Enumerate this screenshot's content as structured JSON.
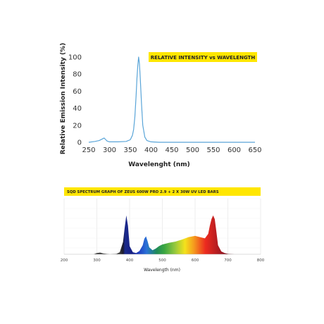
{
  "chart_data": [
    {
      "type": "line",
      "title": "RELATIVE INTENSITY vs WAVELENGTH",
      "xlabel": "Wavelenght (nm)",
      "ylabel": "Relative Emission Intensity (%)",
      "xlim": [
        250,
        650
      ],
      "ylim": [
        0,
        100
      ],
      "xticks": [
        250,
        300,
        350,
        400,
        450,
        500,
        550,
        600,
        650
      ],
      "yticks": [
        0,
        20,
        40,
        60,
        80,
        100
      ],
      "grid": false,
      "colors": {
        "line": "#5aa5d8",
        "title_bg": "#ffe600"
      },
      "series": [
        {
          "x": [
            250,
            265,
            275,
            283,
            287,
            290,
            294,
            300,
            320,
            340,
            350,
            355,
            358,
            361,
            364,
            366,
            368,
            370,
            372,
            374,
            377,
            380,
            385,
            390,
            400,
            420,
            450,
            500,
            550,
            600,
            650
          ],
          "values": [
            0,
            1,
            2,
            4,
            5,
            3.5,
            1.5,
            0.5,
            0.5,
            1,
            3,
            8,
            15,
            30,
            55,
            75,
            90,
            100,
            92,
            75,
            45,
            20,
            6,
            2,
            0.5,
            0,
            0,
            0,
            0,
            0,
            0
          ]
        }
      ]
    },
    {
      "type": "area",
      "title": "SQD SPECTRUM GRAPH OF ZEUS 600W PRO 2.9 + 2 X 30W UV LED BARS",
      "xlabel": "Wavelength (nm)",
      "ylabel": "",
      "xlim": [
        200,
        800
      ],
      "ylim": [
        0,
        100
      ],
      "xticks": [
        200,
        300,
        400,
        500,
        600,
        700,
        800
      ],
      "grid": true,
      "colors": {
        "title_bg": "#ffe600",
        "grid": "#dddddd"
      },
      "series": [
        {
          "x": [
            200,
            290,
            300,
            310,
            320,
            340,
            360,
            370,
            380,
            385,
            390,
            395,
            400,
            410,
            420,
            430,
            440,
            445,
            450,
            455,
            460,
            470,
            480,
            490,
            500,
            520,
            540,
            560,
            580,
            600,
            620,
            630,
            640,
            645,
            650,
            655,
            660,
            665,
            670,
            680,
            690,
            700,
            720,
            750,
            800
          ],
          "values": [
            0,
            0,
            3,
            4,
            2,
            0,
            1,
            5,
            30,
            65,
            95,
            70,
            20,
            5,
            3,
            8,
            22,
            38,
            44,
            32,
            17,
            10,
            14,
            20,
            24,
            28,
            31,
            36,
            42,
            45,
            41,
            39,
            50,
            70,
            86,
            95,
            86,
            55,
            22,
            7,
            3,
            1,
            0,
            0,
            0
          ]
        }
      ]
    }
  ]
}
